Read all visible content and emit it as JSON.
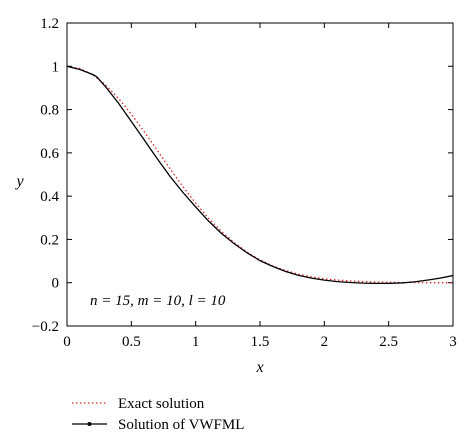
{
  "chart_data": {
    "type": "line",
    "title": "",
    "xlabel": "x",
    "ylabel": "y",
    "xlim": [
      0,
      3
    ],
    "ylim": [
      -0.2,
      1.2
    ],
    "xticks": [
      0,
      0.5,
      1,
      1.5,
      2,
      2.5,
      3
    ],
    "xtick_labels": [
      "0",
      "0.5",
      "1",
      "1.5",
      "2",
      "2.5",
      "3"
    ],
    "yticks": [
      -0.2,
      0,
      0.2,
      0.4,
      0.6,
      0.8,
      1,
      1.2
    ],
    "ytick_labels": [
      "−0.2",
      "0",
      "0.2",
      "0.4",
      "0.6",
      "0.8",
      "1",
      "1.2"
    ],
    "grid": false,
    "legend_position": "below-left",
    "annotation": "n = 15, m = 10, l = 10",
    "series": [
      {
        "name": "Exact solution",
        "color": "#d62728",
        "style": "dotted",
        "x": [
          0,
          0.1,
          0.2,
          0.3,
          0.4,
          0.5,
          0.6,
          0.7,
          0.8,
          0.9,
          1.0,
          1.1,
          1.2,
          1.3,
          1.4,
          1.5,
          1.6,
          1.7,
          1.8,
          1.9,
          2.0,
          2.1,
          2.2,
          2.3,
          2.4,
          2.5,
          2.6,
          2.7,
          2.8,
          2.9,
          3.0
        ],
        "y": [
          1.0,
          0.99,
          0.961,
          0.914,
          0.852,
          0.779,
          0.698,
          0.613,
          0.527,
          0.445,
          0.368,
          0.298,
          0.237,
          0.185,
          0.141,
          0.105,
          0.077,
          0.056,
          0.039,
          0.027,
          0.018,
          0.012,
          0.008,
          0.005,
          0.003,
          0.002,
          0.001,
          0.001,
          0.0,
          0.0,
          0.0
        ]
      },
      {
        "name": "Solution of VWFML",
        "color": "#000000",
        "style": "solid",
        "x": [
          0,
          0.1,
          0.2,
          0.23,
          0.3,
          0.4,
          0.5,
          0.6,
          0.7,
          0.8,
          0.9,
          1.0,
          1.1,
          1.2,
          1.3,
          1.4,
          1.5,
          1.6,
          1.7,
          1.8,
          1.9,
          2.0,
          2.1,
          2.2,
          2.3,
          2.4,
          2.5,
          2.6,
          2.7,
          2.8,
          2.9,
          3.0
        ],
        "y": [
          1.0,
          0.985,
          0.962,
          0.952,
          0.905,
          0.83,
          0.745,
          0.66,
          0.574,
          0.492,
          0.418,
          0.35,
          0.285,
          0.228,
          0.18,
          0.138,
          0.102,
          0.075,
          0.052,
          0.034,
          0.021,
          0.012,
          0.005,
          0.001,
          -0.002,
          -0.003,
          -0.003,
          -0.001,
          0.004,
          0.012,
          0.021,
          0.033
        ]
      }
    ]
  }
}
